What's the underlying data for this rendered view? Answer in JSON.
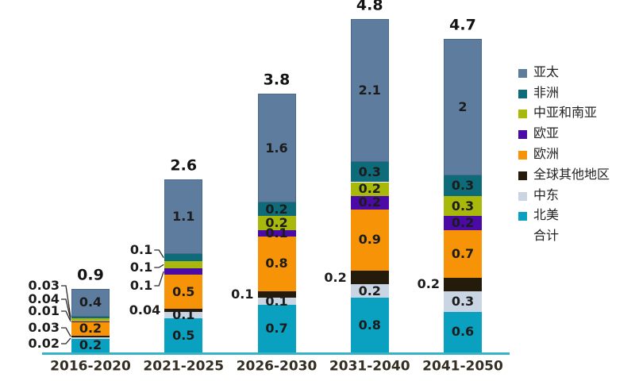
{
  "chart_data": {
    "type": "bar",
    "subtype": "stacked",
    "title": "",
    "xlabel": "",
    "ylabel": "",
    "grid": false,
    "legend_position": "right",
    "categories": [
      "2016-2020",
      "2021-2025",
      "2026-2030",
      "2031-2040",
      "2041-2050"
    ],
    "totals": [
      "0.9",
      "2.6",
      "3.8",
      "4.8",
      "4.7"
    ],
    "stack_order": "bottom_to_top",
    "series": [
      {
        "key": "north-america",
        "name": "北美",
        "color": "#0aa0bf",
        "values": [
          0.2,
          0.5,
          0.7,
          0.8,
          0.6
        ],
        "labels": [
          "0.2",
          "0.5",
          "0.7",
          "0.8",
          "0.6"
        ],
        "label_mode": [
          "inside",
          "inside",
          "inside",
          "inside",
          "inside"
        ]
      },
      {
        "key": "middle-east",
        "name": "中东",
        "color": "#c9d5e3",
        "values": [
          0.02,
          0.1,
          0.1,
          0.2,
          0.3
        ],
        "labels": [
          "0.02",
          "0.1",
          "0.1",
          "0.2",
          "0.3"
        ],
        "label_mode": [
          "callout",
          "inside",
          "inside",
          "inside",
          "inside"
        ]
      },
      {
        "key": "rest-of-world",
        "name": "全球其他地区",
        "color": "#251b0b",
        "values": [
          0.03,
          0.04,
          0.1,
          0.2,
          0.2
        ],
        "labels": [
          "0.03",
          "0.04",
          "0.1",
          "0.2",
          "0.2"
        ],
        "label_mode": [
          "callout",
          "direct",
          "direct",
          "direct",
          "direct"
        ]
      },
      {
        "key": "europe",
        "name": "欧洲",
        "color": "#f79306",
        "values": [
          0.2,
          0.5,
          0.8,
          0.9,
          0.7
        ],
        "labels": [
          "0.2",
          "0.5",
          "0.8",
          "0.9",
          "0.7"
        ],
        "label_mode": [
          "inside",
          "inside",
          "inside",
          "inside",
          "inside"
        ]
      },
      {
        "key": "eurasia",
        "name": "欧亚",
        "color": "#4b0aa5",
        "values": [
          0.01,
          0.1,
          0.1,
          0.2,
          0.2
        ],
        "labels": [
          "0.01",
          "0.1",
          "0.1",
          "0.2",
          "0.2"
        ],
        "label_mode": [
          "callout",
          "callout",
          "inside",
          "inside",
          "inside"
        ]
      },
      {
        "key": "central-south-asia",
        "name": "中亚和南亚",
        "color": "#a9b90b",
        "values": [
          0.04,
          0.1,
          0.2,
          0.2,
          0.3
        ],
        "labels": [
          "0.04",
          "0.1",
          "0.2",
          "0.2",
          "0.3"
        ],
        "label_mode": [
          "callout",
          "callout",
          "inside",
          "inside",
          "inside"
        ]
      },
      {
        "key": "africa",
        "name": "非洲",
        "color": "#0e6b7a",
        "values": [
          0.03,
          0.1,
          0.2,
          0.3,
          0.3
        ],
        "labels": [
          "0.03",
          "0.1",
          "0.2",
          "0.3",
          "0.3"
        ],
        "label_mode": [
          "callout",
          "callout",
          "inside",
          "inside",
          "inside"
        ]
      },
      {
        "key": "asia-pacific",
        "name": "亚太",
        "color": "#5d7c9e",
        "values": [
          0.4,
          1.1,
          1.6,
          2.1,
          2.0
        ],
        "labels": [
          "0.4",
          "1.1",
          "1.6",
          "2.1",
          "2"
        ],
        "label_mode": [
          "inside",
          "inside",
          "inside",
          "inside",
          "inside"
        ]
      }
    ],
    "legend": [
      {
        "key": "asia-pacific",
        "label": "亚太",
        "color": "#5d7c9e"
      },
      {
        "key": "africa",
        "label": "非洲",
        "color": "#0e6b7a"
      },
      {
        "key": "central-south-asia",
        "label": "中亚和南亚",
        "color": "#a9b90b"
      },
      {
        "key": "eurasia",
        "label": "欧亚",
        "color": "#4b0aa5"
      },
      {
        "key": "europe",
        "label": "欧洲",
        "color": "#f79306"
      },
      {
        "key": "rest-of-world",
        "label": "全球其他地区",
        "color": "#251b0b"
      },
      {
        "key": "middle-east",
        "label": "中东",
        "color": "#c9d5e3"
      },
      {
        "key": "north-america",
        "label": "北美",
        "color": "#0aa0bf"
      },
      {
        "key": "total",
        "label": "合计",
        "color": null
      }
    ],
    "axis_color": "#38b3c5",
    "ylim": [
      0,
      5
    ]
  }
}
